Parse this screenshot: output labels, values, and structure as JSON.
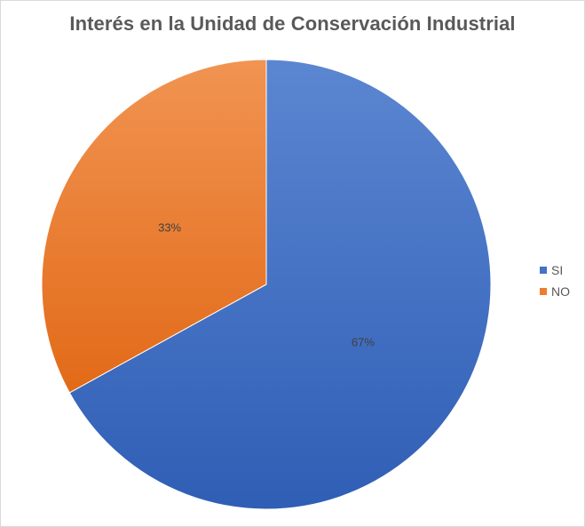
{
  "chart_data": {
    "type": "pie",
    "title": "Interés en la Unidad de Conservación Industrial",
    "categories": [
      "SI",
      "NO"
    ],
    "values": [
      67,
      33
    ],
    "labels": [
      "67%",
      "33%"
    ],
    "colors": [
      "#4472C4",
      "#ED7D31"
    ],
    "legend_position": "right"
  }
}
